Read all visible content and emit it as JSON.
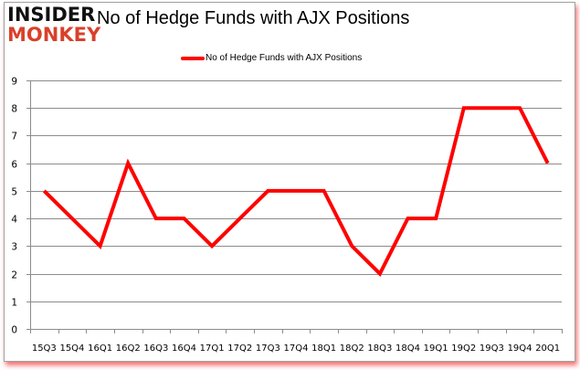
{
  "logo": {
    "line1": "INSIDER",
    "line2": "MONKEY"
  },
  "title": "No of Hedge Funds with AJX Positions",
  "legend": {
    "label": "No of Hedge Funds with AJX Positions",
    "color": "#ff0000"
  },
  "chart_data": {
    "type": "line",
    "title": "No of Hedge Funds with AJX Positions",
    "xlabel": "",
    "ylabel": "",
    "ylim": [
      0,
      9
    ],
    "yticks": [
      0,
      1,
      2,
      3,
      4,
      5,
      6,
      7,
      8,
      9
    ],
    "grid": true,
    "legend_position": "top",
    "categories": [
      "15Q3",
      "15Q4",
      "16Q1",
      "16Q2",
      "16Q3",
      "16Q4",
      "17Q1",
      "17Q2",
      "17Q3",
      "17Q4",
      "18Q1",
      "18Q2",
      "18Q3",
      "18Q4",
      "19Q1",
      "19Q2",
      "19Q3",
      "19Q4",
      "20Q1"
    ],
    "series": [
      {
        "name": "No of Hedge Funds with AJX Positions",
        "color": "#ff0000",
        "values": [
          5,
          4,
          3,
          6,
          4,
          4,
          3,
          4,
          5,
          5,
          5,
          3,
          2,
          4,
          4,
          8,
          8,
          8,
          6
        ]
      }
    ]
  }
}
